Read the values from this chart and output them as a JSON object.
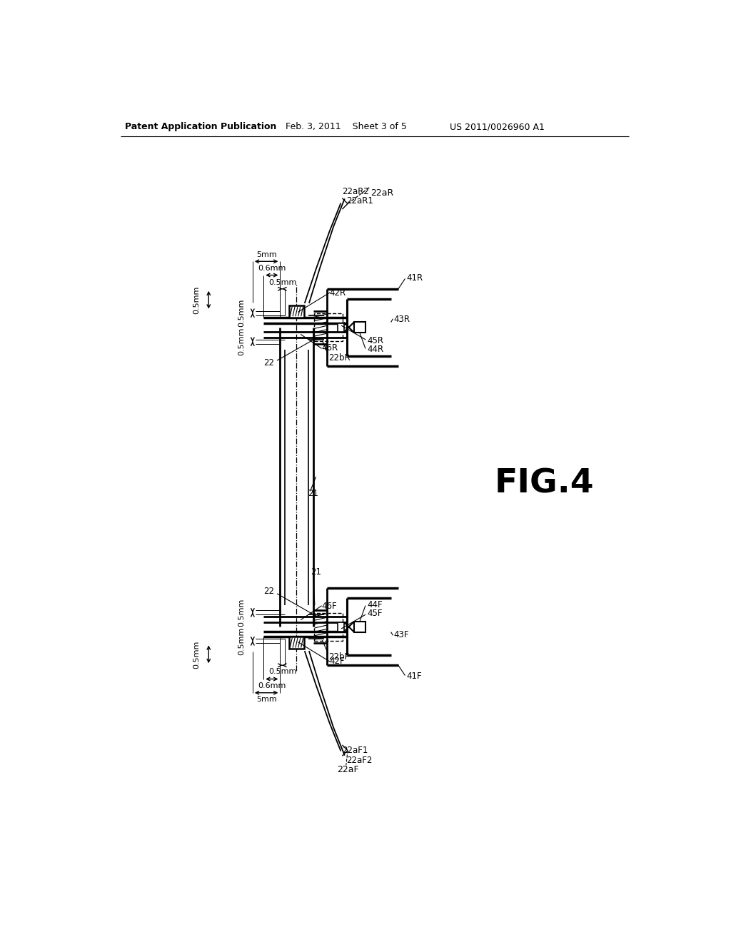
{
  "bg_color": "#ffffff",
  "header_left": "Patent Application Publication",
  "header_center": "Feb. 3, 2011    Sheet 3 of 5",
  "header_right": "US 2011/0026960 A1",
  "fig_label": "FIG.4"
}
